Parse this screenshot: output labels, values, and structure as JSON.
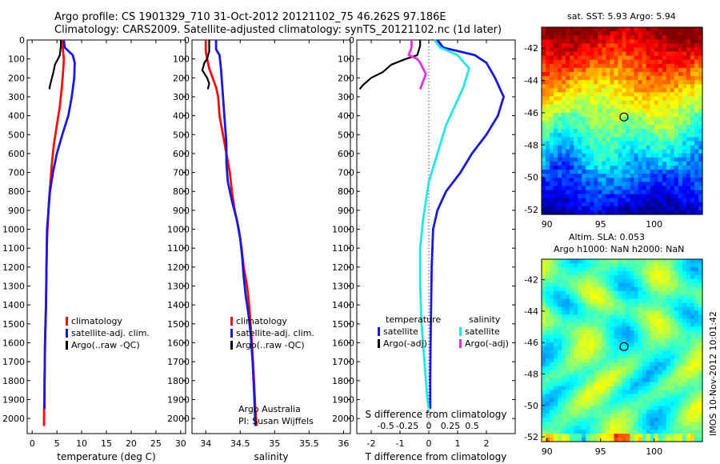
{
  "header": {
    "line1": "Argo profile: CS 1901329_710 31-Oct-2012 20121102_75 46.262S 97.186E",
    "line2": "Climatology: CARS2009. Satellite-adjusted climatology: synTS_20121102.nc (1d later)"
  },
  "colors": {
    "climatology": "#ee1111",
    "satellite": "#1a1ad6",
    "satellite_s": "#22e6e6",
    "argo": "#000000",
    "argo_s": "#e030e0"
  },
  "chart_data": [
    {
      "type": "line",
      "xlabel": "temperature (deg C)",
      "ylabel": "",
      "xlim": [
        -1,
        31
      ],
      "ylim": [
        2080,
        0
      ],
      "xticks": [
        0,
        5,
        10,
        15,
        20,
        25,
        30
      ],
      "yticks": [
        0,
        100,
        200,
        300,
        400,
        500,
        600,
        700,
        800,
        900,
        1000,
        1100,
        1200,
        1300,
        1400,
        1500,
        1600,
        1700,
        1800,
        1900,
        2000
      ],
      "legend": [
        "climatology",
        "satellite-adj. clim.",
        "Argo(..raw -QC)"
      ],
      "series": [
        {
          "name": "climatology",
          "color": "#ee1111",
          "points": [
            [
              6.1,
              0
            ],
            [
              6.2,
              50
            ],
            [
              6.4,
              100
            ],
            [
              6.3,
              150
            ],
            [
              6.0,
              250
            ],
            [
              5.6,
              350
            ],
            [
              5.0,
              450
            ],
            [
              4.4,
              550
            ],
            [
              4.0,
              650
            ],
            [
              3.7,
              750
            ],
            [
              3.4,
              850
            ],
            [
              3.2,
              950
            ],
            [
              3.0,
              1050
            ],
            [
              2.9,
              1200
            ],
            [
              2.8,
              1400
            ],
            [
              2.6,
              1600
            ],
            [
              2.5,
              1800
            ],
            [
              2.4,
              2000
            ],
            [
              2.4,
              2040
            ]
          ]
        },
        {
          "name": "satellite-adj. clim.",
          "color": "#1a1ad6",
          "points": [
            [
              6.4,
              0
            ],
            [
              6.6,
              40
            ],
            [
              8.2,
              80
            ],
            [
              8.6,
              120
            ],
            [
              8.5,
              200
            ],
            [
              8.0,
              300
            ],
            [
              7.3,
              400
            ],
            [
              6.1,
              500
            ],
            [
              5.0,
              600
            ],
            [
              4.2,
              700
            ],
            [
              3.6,
              800
            ],
            [
              3.3,
              900
            ],
            [
              3.0,
              1000
            ],
            [
              2.9,
              1200
            ],
            [
              2.8,
              1400
            ],
            [
              2.6,
              1600
            ],
            [
              2.5,
              1800
            ],
            [
              2.5,
              1950
            ]
          ]
        },
        {
          "name": "Argo(..raw -QC)",
          "color": "#000000",
          "points": [
            [
              5.8,
              0
            ],
            [
              5.8,
              30
            ],
            [
              5.6,
              80
            ],
            [
              5.2,
              100
            ],
            [
              4.6,
              130
            ],
            [
              4.3,
              170
            ],
            [
              4.0,
              200
            ],
            [
              3.6,
              240
            ],
            [
              3.5,
              260
            ]
          ]
        }
      ]
    },
    {
      "type": "line",
      "xlabel": "salinity",
      "ylabel": "",
      "xlim": [
        33.8,
        36.1
      ],
      "ylim": [
        2080,
        0
      ],
      "xticks": [
        34,
        34.5,
        35,
        35.5,
        36
      ],
      "yticks": [
        0,
        100,
        200,
        300,
        400,
        500,
        600,
        700,
        800,
        900,
        1000,
        1100,
        1200,
        1300,
        1400,
        1500,
        1600,
        1700,
        1800,
        1900,
        2000
      ],
      "legend": [
        "climatology",
        "satellite-adj. clim.",
        "Argo(..raw -QC)"
      ],
      "annotations": [
        "Argo Australia",
        "PI: Susan Wijffels"
      ],
      "series": [
        {
          "name": "climatology",
          "color": "#ee1111",
          "points": [
            [
              34.0,
              0
            ],
            [
              34.0,
              60
            ],
            [
              34.02,
              100
            ],
            [
              34.05,
              150
            ],
            [
              34.1,
              200
            ],
            [
              34.15,
              250
            ],
            [
              34.18,
              300
            ],
            [
              34.2,
              400
            ],
            [
              34.25,
              500
            ],
            [
              34.3,
              600
            ],
            [
              34.35,
              700
            ],
            [
              34.38,
              800
            ],
            [
              34.42,
              900
            ],
            [
              34.48,
              1000
            ],
            [
              34.52,
              1100
            ],
            [
              34.55,
              1200
            ],
            [
              34.6,
              1300
            ],
            [
              34.63,
              1400
            ],
            [
              34.67,
              1600
            ],
            [
              34.7,
              1800
            ],
            [
              34.72,
              1950
            ],
            [
              34.74,
              2040
            ]
          ]
        },
        {
          "name": "satellite-adj. clim.",
          "color": "#1a1ad6",
          "points": [
            [
              34.15,
              0
            ],
            [
              34.15,
              50
            ],
            [
              34.2,
              80
            ],
            [
              34.22,
              150
            ],
            [
              34.24,
              250
            ],
            [
              34.26,
              350
            ],
            [
              34.28,
              450
            ],
            [
              34.3,
              550
            ],
            [
              34.3,
              650
            ],
            [
              34.32,
              750
            ],
            [
              34.38,
              850
            ],
            [
              34.45,
              950
            ],
            [
              34.5,
              1050
            ],
            [
              34.53,
              1150
            ],
            [
              34.55,
              1250
            ],
            [
              34.58,
              1350
            ],
            [
              34.62,
              1450
            ],
            [
              34.65,
              1550
            ],
            [
              34.68,
              1700
            ],
            [
              34.7,
              1850
            ],
            [
              34.72,
              2040
            ]
          ]
        },
        {
          "name": "Argo(..raw -QC)",
          "color": "#000000",
          "points": [
            [
              34.05,
              0
            ],
            [
              34.05,
              60
            ],
            [
              34.02,
              100
            ],
            [
              33.98,
              120
            ],
            [
              33.95,
              160
            ],
            [
              34.02,
              200
            ],
            [
              34.05,
              230
            ],
            [
              34.03,
              260
            ]
          ]
        }
      ]
    },
    {
      "type": "line",
      "xlabel": "T difference from climatology",
      "ylabel": "",
      "secondary_xlabel": "S difference from climatology",
      "xlim": [
        -2.5,
        3
      ],
      "ylim": [
        2080,
        0
      ],
      "xticks": [
        -2,
        -1,
        0,
        1,
        2
      ],
      "secondary_xticks": [
        "-0.5",
        "-0.25",
        "0",
        "0.25",
        "0.5"
      ],
      "yticks": [
        0,
        100,
        200,
        300,
        400,
        500,
        600,
        700,
        800,
        900,
        1000,
        1100,
        1200,
        1300,
        1400,
        1500,
        1600,
        1700,
        1800,
        1900,
        2000
      ],
      "legend_groups": [
        {
          "title": "temperature",
          "items": [
            "satellite",
            "Argo(-adj)"
          ]
        },
        {
          "title": "salinity",
          "items": [
            "satellite",
            "Argo(-adj)"
          ]
        }
      ],
      "series": [
        {
          "name": "temperature satellite",
          "color": "#1a1ad6",
          "points": [
            [
              0.3,
              0
            ],
            [
              0.5,
              40
            ],
            [
              1.6,
              80
            ],
            [
              2.0,
              120
            ],
            [
              2.3,
              200
            ],
            [
              2.6,
              300
            ],
            [
              2.4,
              400
            ],
            [
              2.0,
              500
            ],
            [
              1.5,
              600
            ],
            [
              1.1,
              700
            ],
            [
              0.6,
              800
            ],
            [
              0.3,
              900
            ],
            [
              0.15,
              1000
            ],
            [
              0.1,
              1200
            ],
            [
              0.08,
              1400
            ],
            [
              0.06,
              1600
            ],
            [
              0.05,
              1800
            ],
            [
              0.05,
              1950
            ]
          ]
        },
        {
          "name": "salinity satellite",
          "color": "#22e6e6",
          "points": [
            [
              0.2,
              0
            ],
            [
              0.4,
              40
            ],
            [
              1.0,
              80
            ],
            [
              1.4,
              150
            ],
            [
              1.2,
              250
            ],
            [
              0.9,
              350
            ],
            [
              0.6,
              450
            ],
            [
              0.4,
              550
            ],
            [
              0.2,
              650
            ],
            [
              0.0,
              750
            ],
            [
              -0.1,
              850
            ],
            [
              -0.2,
              950
            ],
            [
              -0.3,
              1100
            ],
            [
              -0.3,
              1300
            ],
            [
              -0.25,
              1500
            ],
            [
              -0.15,
              1700
            ],
            [
              -0.05,
              1900
            ],
            [
              0.0,
              1950
            ]
          ]
        },
        {
          "name": "temperature Argo(-adj)",
          "color": "#000000",
          "points": [
            [
              -0.3,
              0
            ],
            [
              -0.3,
              30
            ],
            [
              -0.4,
              80
            ],
            [
              -0.8,
              100
            ],
            [
              -1.3,
              130
            ],
            [
              -1.6,
              170
            ],
            [
              -2.0,
              200
            ],
            [
              -2.3,
              240
            ],
            [
              -2.4,
              260
            ]
          ]
        },
        {
          "name": "salinity Argo(-adj)",
          "color": "#e030e0",
          "points": [
            [
              -0.6,
              0
            ],
            [
              -0.6,
              40
            ],
            [
              -0.7,
              80
            ],
            [
              -0.4,
              100
            ],
            [
              -0.3,
              120
            ],
            [
              -0.2,
              150
            ],
            [
              -0.1,
              180
            ],
            [
              -0.2,
              220
            ],
            [
              -0.3,
              260
            ]
          ]
        }
      ]
    }
  ],
  "maps": [
    {
      "title": "sat. SST: 5.93 Argo: 5.94",
      "kind": "sst",
      "xticks": [
        "90",
        "95",
        "100"
      ],
      "yticks": [
        "-42",
        "-44",
        "-46",
        "-48",
        "-50",
        "-52"
      ]
    },
    {
      "title": "Altim. SLA: 0.053",
      "kind": "sla",
      "title2": "Argo h1000: NaN h2000: NaN",
      "xticks": [
        "90",
        "95",
        "100"
      ],
      "yticks": [
        "-42",
        "-44",
        "-46",
        "-48",
        "-50",
        "-52"
      ]
    }
  ],
  "footer_stamp": "IMOS 10-Nov-2012 10:01:42"
}
